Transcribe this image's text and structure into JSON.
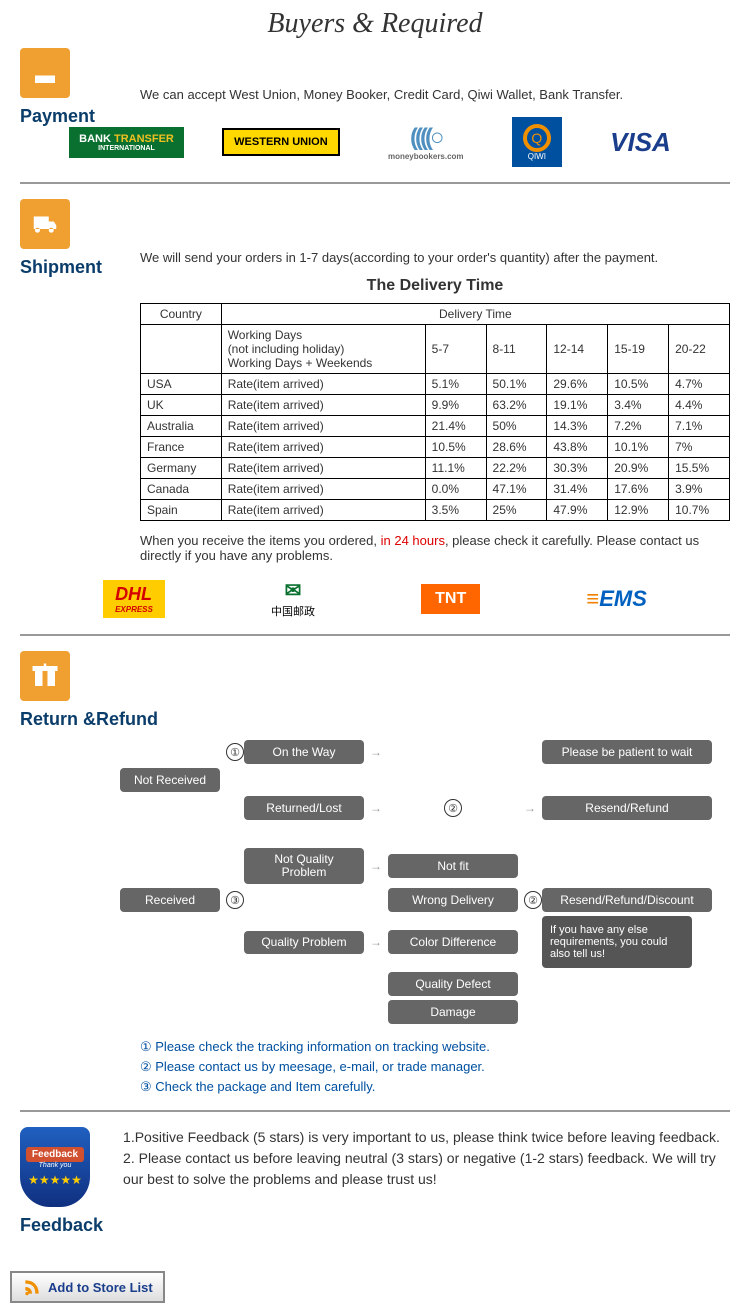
{
  "header": {
    "title": "Buyers & Required"
  },
  "payment": {
    "label": "Payment",
    "text": "We can accept West Union, Money Booker, Credit Card, Qiwi Wallet, Bank Transfer.",
    "logos": {
      "bank": "BANK TRANSFER",
      "bank_sub": "INTERNATIONAL",
      "wu": "WESTERN UNION",
      "mb": "((((○",
      "mb_sub": "moneybookers.com",
      "qiwi": "Q",
      "qiwi_sub": "QIWI",
      "visa": "VISA"
    }
  },
  "shipment": {
    "label": "Shipment",
    "intro": "We will send your orders in 1-7 days(according to your order's quantity) after the payment.",
    "table_title": "The Delivery Time",
    "headers": {
      "country": "Country",
      "delivery": "Delivery Time",
      "wd1": "Working Days",
      "wd2": "(not including holiday)",
      "wd3": "Working Days + Weekends"
    },
    "cols": [
      "5-7",
      "8-11",
      "12-14",
      "15-19",
      "20-22"
    ],
    "rate_label": "Rate(item arrived)",
    "rows": [
      {
        "c": "USA",
        "v": [
          "5.1%",
          "50.1%",
          "29.6%",
          "10.5%",
          "4.7%"
        ]
      },
      {
        "c": "UK",
        "v": [
          "9.9%",
          "63.2%",
          "19.1%",
          "3.4%",
          "4.4%"
        ]
      },
      {
        "c": "Australia",
        "v": [
          "21.4%",
          "50%",
          "14.3%",
          "7.2%",
          "7.1%"
        ]
      },
      {
        "c": "France",
        "v": [
          "10.5%",
          "28.6%",
          "43.8%",
          "10.1%",
          "7%"
        ]
      },
      {
        "c": "Germany",
        "v": [
          "11.1%",
          "22.2%",
          "30.3%",
          "20.9%",
          "15.5%"
        ]
      },
      {
        "c": "Canada",
        "v": [
          "0.0%",
          "47.1%",
          "31.4%",
          "17.6%",
          "3.9%"
        ]
      },
      {
        "c": "Spain",
        "v": [
          "3.5%",
          "25%",
          "47.9%",
          "12.9%",
          "10.7%"
        ]
      }
    ],
    "note_pre": "When you receive the items you ordered, ",
    "note_red": "in 24 hours",
    "note_post": ", please check it carefully. Please contact us directly if you have any problems.",
    "carriers": {
      "dhl": "DHL",
      "dhl_sub": "EXPRESS",
      "cp": "✉",
      "cp_sub": "中国邮政",
      "tnt": "TNT",
      "ems": "EMS"
    }
  },
  "return": {
    "label": "Return &Refund",
    "nodes": {
      "not_received": "Not Received",
      "on_way": "On the Way",
      "patient": "Please be patient to wait",
      "returned": "Returned/Lost",
      "resend1": "Resend/Refund",
      "received": "Received",
      "nqp": "Not Quality Problem",
      "not_fit": "Not fit",
      "wrong": "Wrong Delivery",
      "qp": "Quality Problem",
      "color": "Color Difference",
      "defect": "Quality Defect",
      "damage": "Damage",
      "resend2": "Resend/Refund/Discount",
      "tip": "If you have any else requirements, you could also tell us!"
    },
    "legend": [
      "① Please check the tracking information on tracking website.",
      "② Please contact us by meesage, e-mail, or trade manager.",
      "③ Check the package and Item carefully."
    ]
  },
  "feedback": {
    "label": "Feedback",
    "badge": "Feedback",
    "badge_sub": "Thank you",
    "lines": [
      "1.Positive Feedback (5 stars) is very important to us, please think twice before leaving feedback.",
      "2. Please contact us before leaving neutral (3 stars) or negative (1-2 stars) feedback. We will try our best to solve the problems and please trust us!"
    ]
  },
  "footer": {
    "add_store": "Add to Store List"
  }
}
